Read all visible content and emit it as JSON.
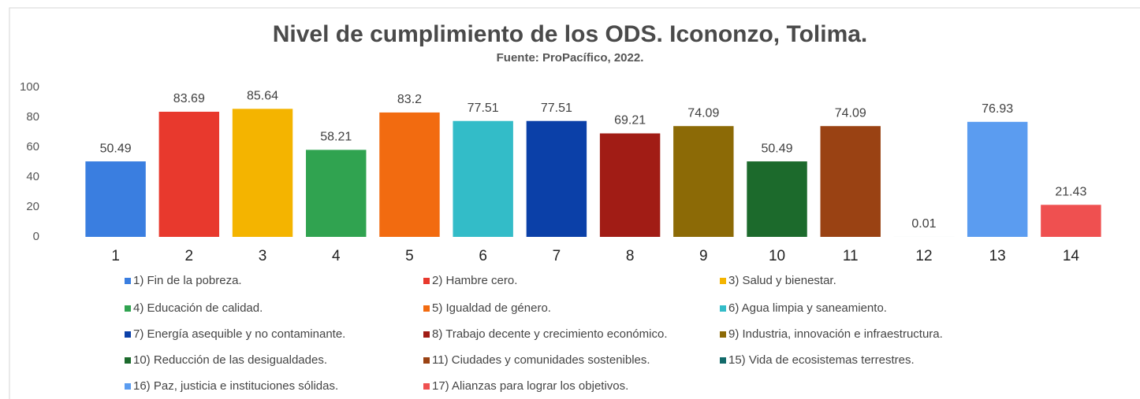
{
  "chart_data": {
    "type": "bar",
    "title": "Nivel de cumplimiento de los ODS. Icononzo, Tolima.",
    "subtitle": "Fuente: ProPacífico, 2022.",
    "categories": [
      "1",
      "2",
      "3",
      "4",
      "5",
      "6",
      "7",
      "8",
      "9",
      "10",
      "11",
      "12",
      "13",
      "14"
    ],
    "values": [
      50.49,
      83.69,
      85.64,
      58.21,
      83.2,
      77.51,
      77.51,
      69.21,
      74.09,
      50.49,
      74.09,
      0.01,
      76.93,
      21.43
    ],
    "colors": [
      "#3a7ee0",
      "#e8392d",
      "#f4b400",
      "#30a350",
      "#f26b10",
      "#33bcc8",
      "#0b40a8",
      "#a11c15",
      "#8c6a06",
      "#1c6a2c",
      "#9a4213",
      "#126a6a",
      "#5b9cf0",
      "#ef5050"
    ],
    "legend": [
      "1) Fin de la pobreza.",
      "2) Hambre cero.",
      "3) Salud y bienestar.",
      "4) Educación de calidad.",
      "5) Igualdad de género.",
      "6) Agua limpia y saneamiento.",
      "7) Energía asequible y no contaminante.",
      "8) Trabajo decente y crecimiento económico.",
      "9) Industria, innovación e infraestructura.",
      "10) Reducción de las desigualdades.",
      "11) Ciudades y comunidades sostenibles.",
      "15) Vida de ecosistemas terrestres.",
      "16) Paz, justicia e instituciones sólidas.",
      "17) Alianzas para lograr los objetivos."
    ],
    "ylim": [
      0,
      100
    ],
    "yticks": [
      0,
      20,
      40,
      60,
      80,
      100
    ],
    "grid": false
  }
}
